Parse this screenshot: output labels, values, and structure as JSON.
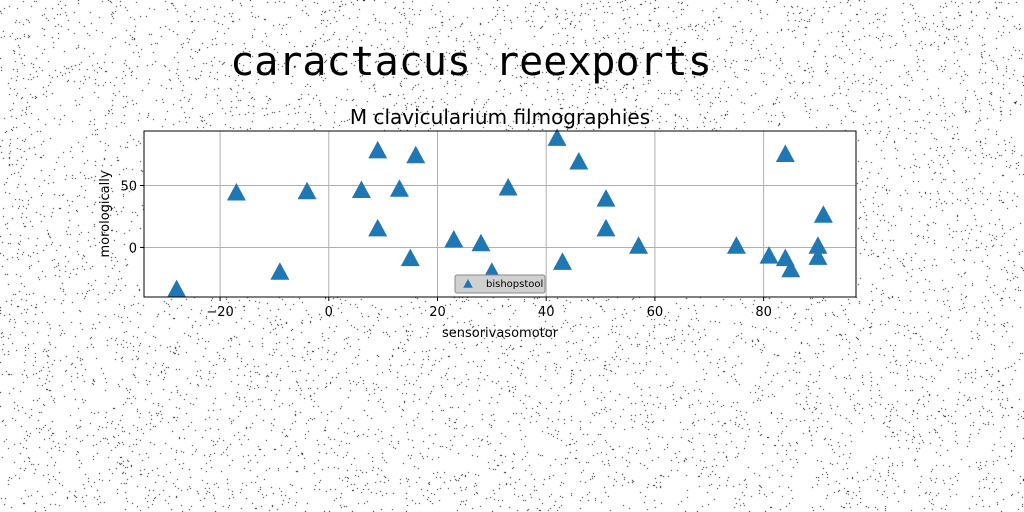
{
  "page": {
    "heading": "caractacus reexports",
    "background": "#ffffff",
    "noise_color": "#000000"
  },
  "chart_data": {
    "type": "scatter",
    "title": "M clavicularium filmographies",
    "xlabel": "sensorivasomotor",
    "ylabel": "morologically",
    "xlim": [
      -34,
      97
    ],
    "ylim": [
      -40,
      94
    ],
    "xticks": [
      -20,
      0,
      20,
      40,
      60,
      80
    ],
    "yticks": [
      0,
      50
    ],
    "grid": true,
    "legend": {
      "placement": "lower-center"
    },
    "series": [
      {
        "name": "bishopstool",
        "marker": "triangle-up",
        "color": "#1f77b4",
        "points": [
          {
            "x": -28,
            "y": -34
          },
          {
            "x": -17,
            "y": 44
          },
          {
            "x": -9,
            "y": -20
          },
          {
            "x": -4,
            "y": 45
          },
          {
            "x": 6,
            "y": 46
          },
          {
            "x": 9,
            "y": 78
          },
          {
            "x": 9,
            "y": 15
          },
          {
            "x": 13,
            "y": 47
          },
          {
            "x": 15,
            "y": -9
          },
          {
            "x": 16,
            "y": 74
          },
          {
            "x": 23,
            "y": 6
          },
          {
            "x": 28,
            "y": 3
          },
          {
            "x": 30,
            "y": -20
          },
          {
            "x": 33,
            "y": 48
          },
          {
            "x": 42,
            "y": 88
          },
          {
            "x": 43,
            "y": -12
          },
          {
            "x": 46,
            "y": 69
          },
          {
            "x": 51,
            "y": 39
          },
          {
            "x": 51,
            "y": 15
          },
          {
            "x": 57,
            "y": 1
          },
          {
            "x": 75,
            "y": 1
          },
          {
            "x": 81,
            "y": -7
          },
          {
            "x": 84,
            "y": -9
          },
          {
            "x": 84,
            "y": 75
          },
          {
            "x": 85,
            "y": -18
          },
          {
            "x": 90,
            "y": 1
          },
          {
            "x": 90,
            "y": -8
          },
          {
            "x": 91,
            "y": 26
          }
        ]
      }
    ]
  }
}
